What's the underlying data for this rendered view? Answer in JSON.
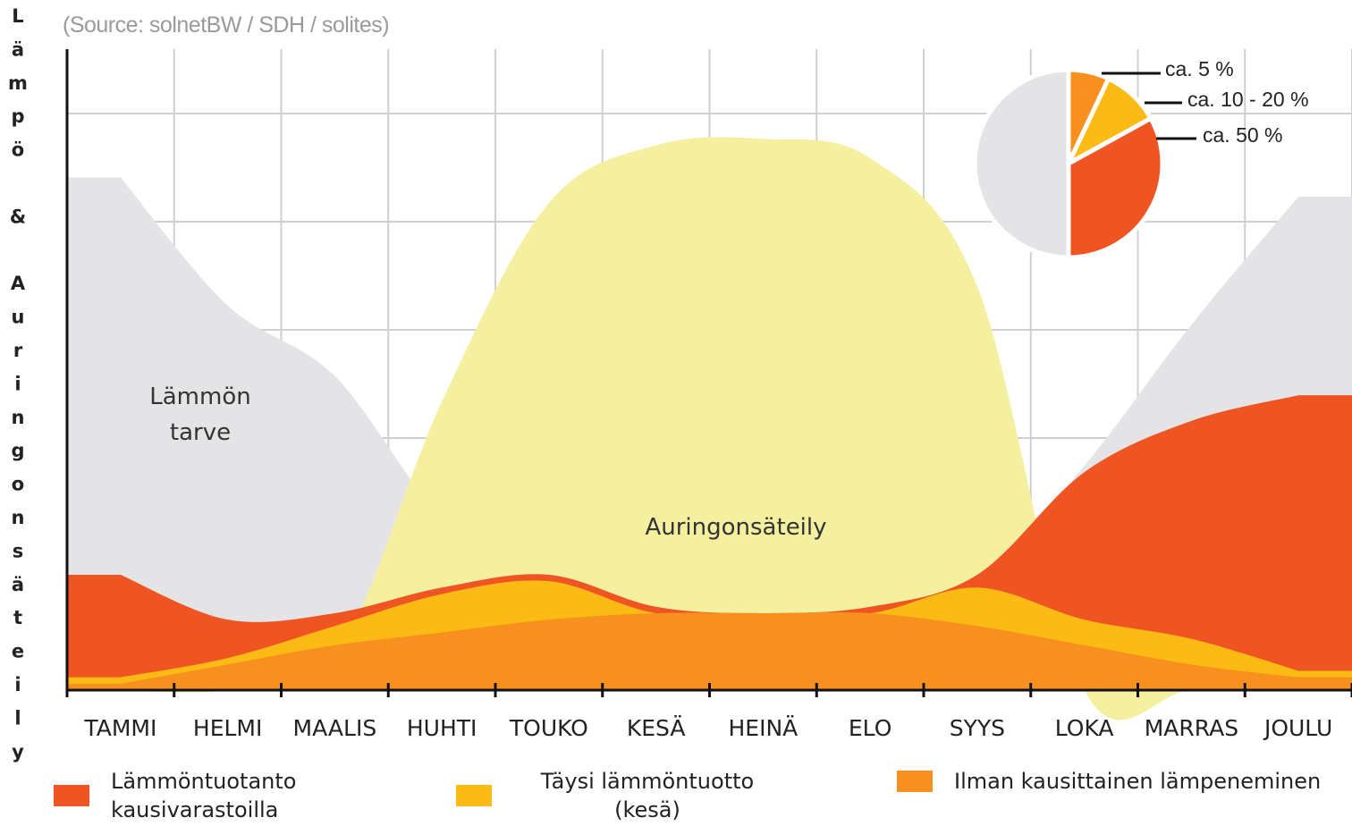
{
  "chart_data": [
    {
      "type": "area",
      "source": "(Source: solnetBW / SDH / solites)",
      "ylabel": "Lämpö & Auringonsäteily",
      "categories": [
        "TAMMI",
        "HELMI",
        "MAALIS",
        "HUHTI",
        "TOUKO",
        "KESÄ",
        "HEINÄ",
        "ELO",
        "SYYS",
        "LOKA",
        "MARRAS",
        "JOULU"
      ],
      "ylim": [
        0,
        100
      ],
      "grid": true,
      "series": [
        {
          "name": "Lämmön tarve",
          "color": "#e4e4e6",
          "legend": false,
          "values": [
            80,
            60,
            49,
            27,
            17,
            13,
            12,
            13,
            17,
            35,
            57,
            77
          ]
        },
        {
          "name": "Auringonsäteily",
          "color": "#f5f0a0",
          "legend": false,
          "values": [
            0,
            0,
            5,
            45,
            76,
            85,
            86,
            83,
            63,
            0,
            0,
            0
          ]
        },
        {
          "name": "Lämmöntuotanto kausivarastoilla",
          "color": "#ef5423",
          "legend": true,
          "values": [
            18,
            11,
            12,
            16,
            18,
            13,
            12,
            13,
            18,
            34,
            42,
            46
          ]
        },
        {
          "name": "Täysi lämmöntuotto (kesä)",
          "color": "#fbbb14",
          "legend": true,
          "values": [
            2,
            5,
            10,
            15,
            17,
            12,
            12,
            12,
            16,
            11,
            8,
            3
          ]
        },
        {
          "name": "Ilman kausittainen lämpeneminen",
          "color": "#f7901e",
          "legend": true,
          "values": [
            1,
            4,
            7,
            9,
            11,
            12,
            12,
            12,
            10,
            7,
            4,
            2
          ]
        }
      ]
    },
    {
      "type": "pie",
      "values": [
        7,
        10,
        33,
        50
      ],
      "colors": [
        "#f7901e",
        "#fbbb14",
        "#ef5423",
        "#e4e4e6"
      ],
      "annotations": [
        "ca. 5 %",
        "ca. 10 - 20 %",
        "ca. 50 %"
      ]
    }
  ]
}
